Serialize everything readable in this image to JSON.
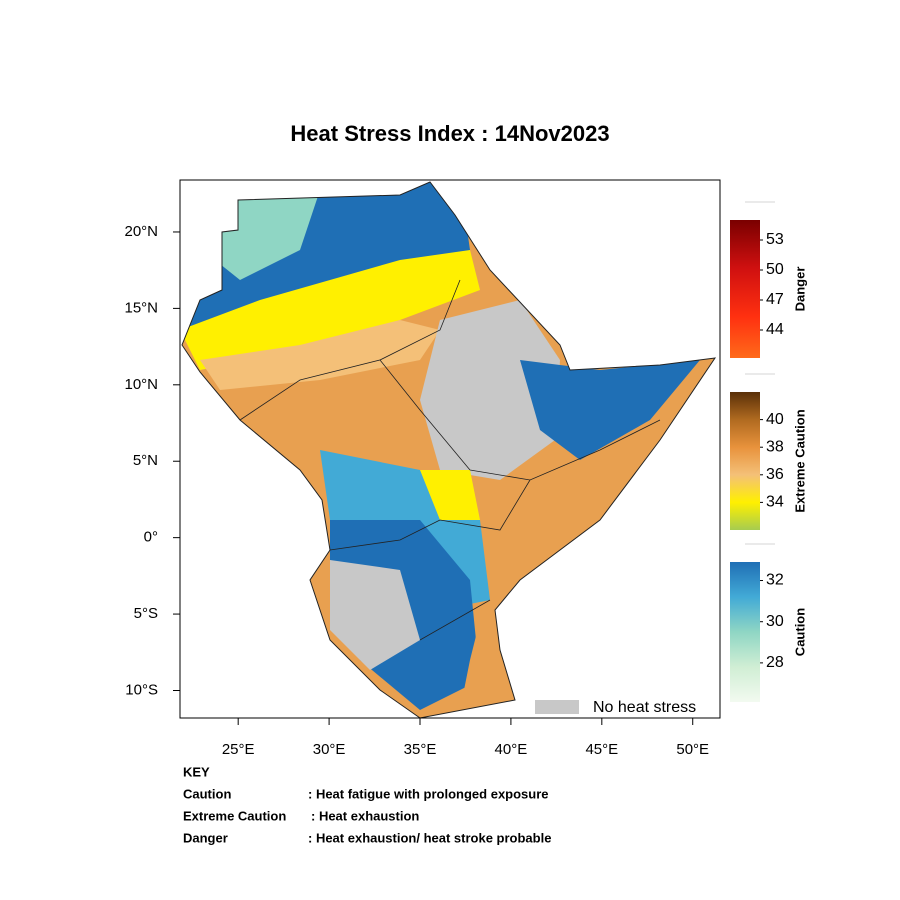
{
  "title": "Heat Stress Index : 14Nov2023",
  "map": {
    "lonlim": [
      21.8,
      51.5
    ],
    "latlim": [
      -11.8,
      23.4
    ],
    "lonticks": [
      {
        "value": 25,
        "label": "25°E"
      },
      {
        "value": 30,
        "label": "30°E"
      },
      {
        "value": 35,
        "label": "35°E"
      },
      {
        "value": 40,
        "label": "40°E"
      },
      {
        "value": 45,
        "label": "45°E"
      },
      {
        "value": 50,
        "label": "50°E"
      }
    ],
    "latticks": [
      {
        "value": 20,
        "label": "20°N"
      },
      {
        "value": 15,
        "label": "15°N"
      },
      {
        "value": 10,
        "label": "10°N"
      },
      {
        "value": 5,
        "label": "5°N"
      },
      {
        "value": 0,
        "label": "0°"
      },
      {
        "value": -5,
        "label": "5°S"
      },
      {
        "value": -10,
        "label": "10°S"
      }
    ],
    "no_heat_stress": "No heat stress"
  },
  "colorbars": [
    {
      "name": "Danger",
      "lim": [
        41.2,
        55
      ],
      "ticks": [
        53,
        50,
        47,
        44
      ]
    },
    {
      "name": "Extreme Caution",
      "lim": [
        32,
        42
      ],
      "ticks": [
        40,
        38,
        36,
        34
      ]
    },
    {
      "name": "Caution",
      "lim": [
        26.1,
        32.9
      ],
      "ticks": [
        32,
        30,
        28
      ]
    }
  ],
  "key": {
    "heading": "KEY",
    "rows": [
      {
        "term": "Caution",
        "meaning": ": Heat fatigue with prolonged exposure"
      },
      {
        "term": "Extreme Caution",
        "meaning": ": Heat exhaustion"
      },
      {
        "term": "Danger",
        "meaning": ": Heat exhaustion/ heat stroke probable"
      }
    ]
  }
}
